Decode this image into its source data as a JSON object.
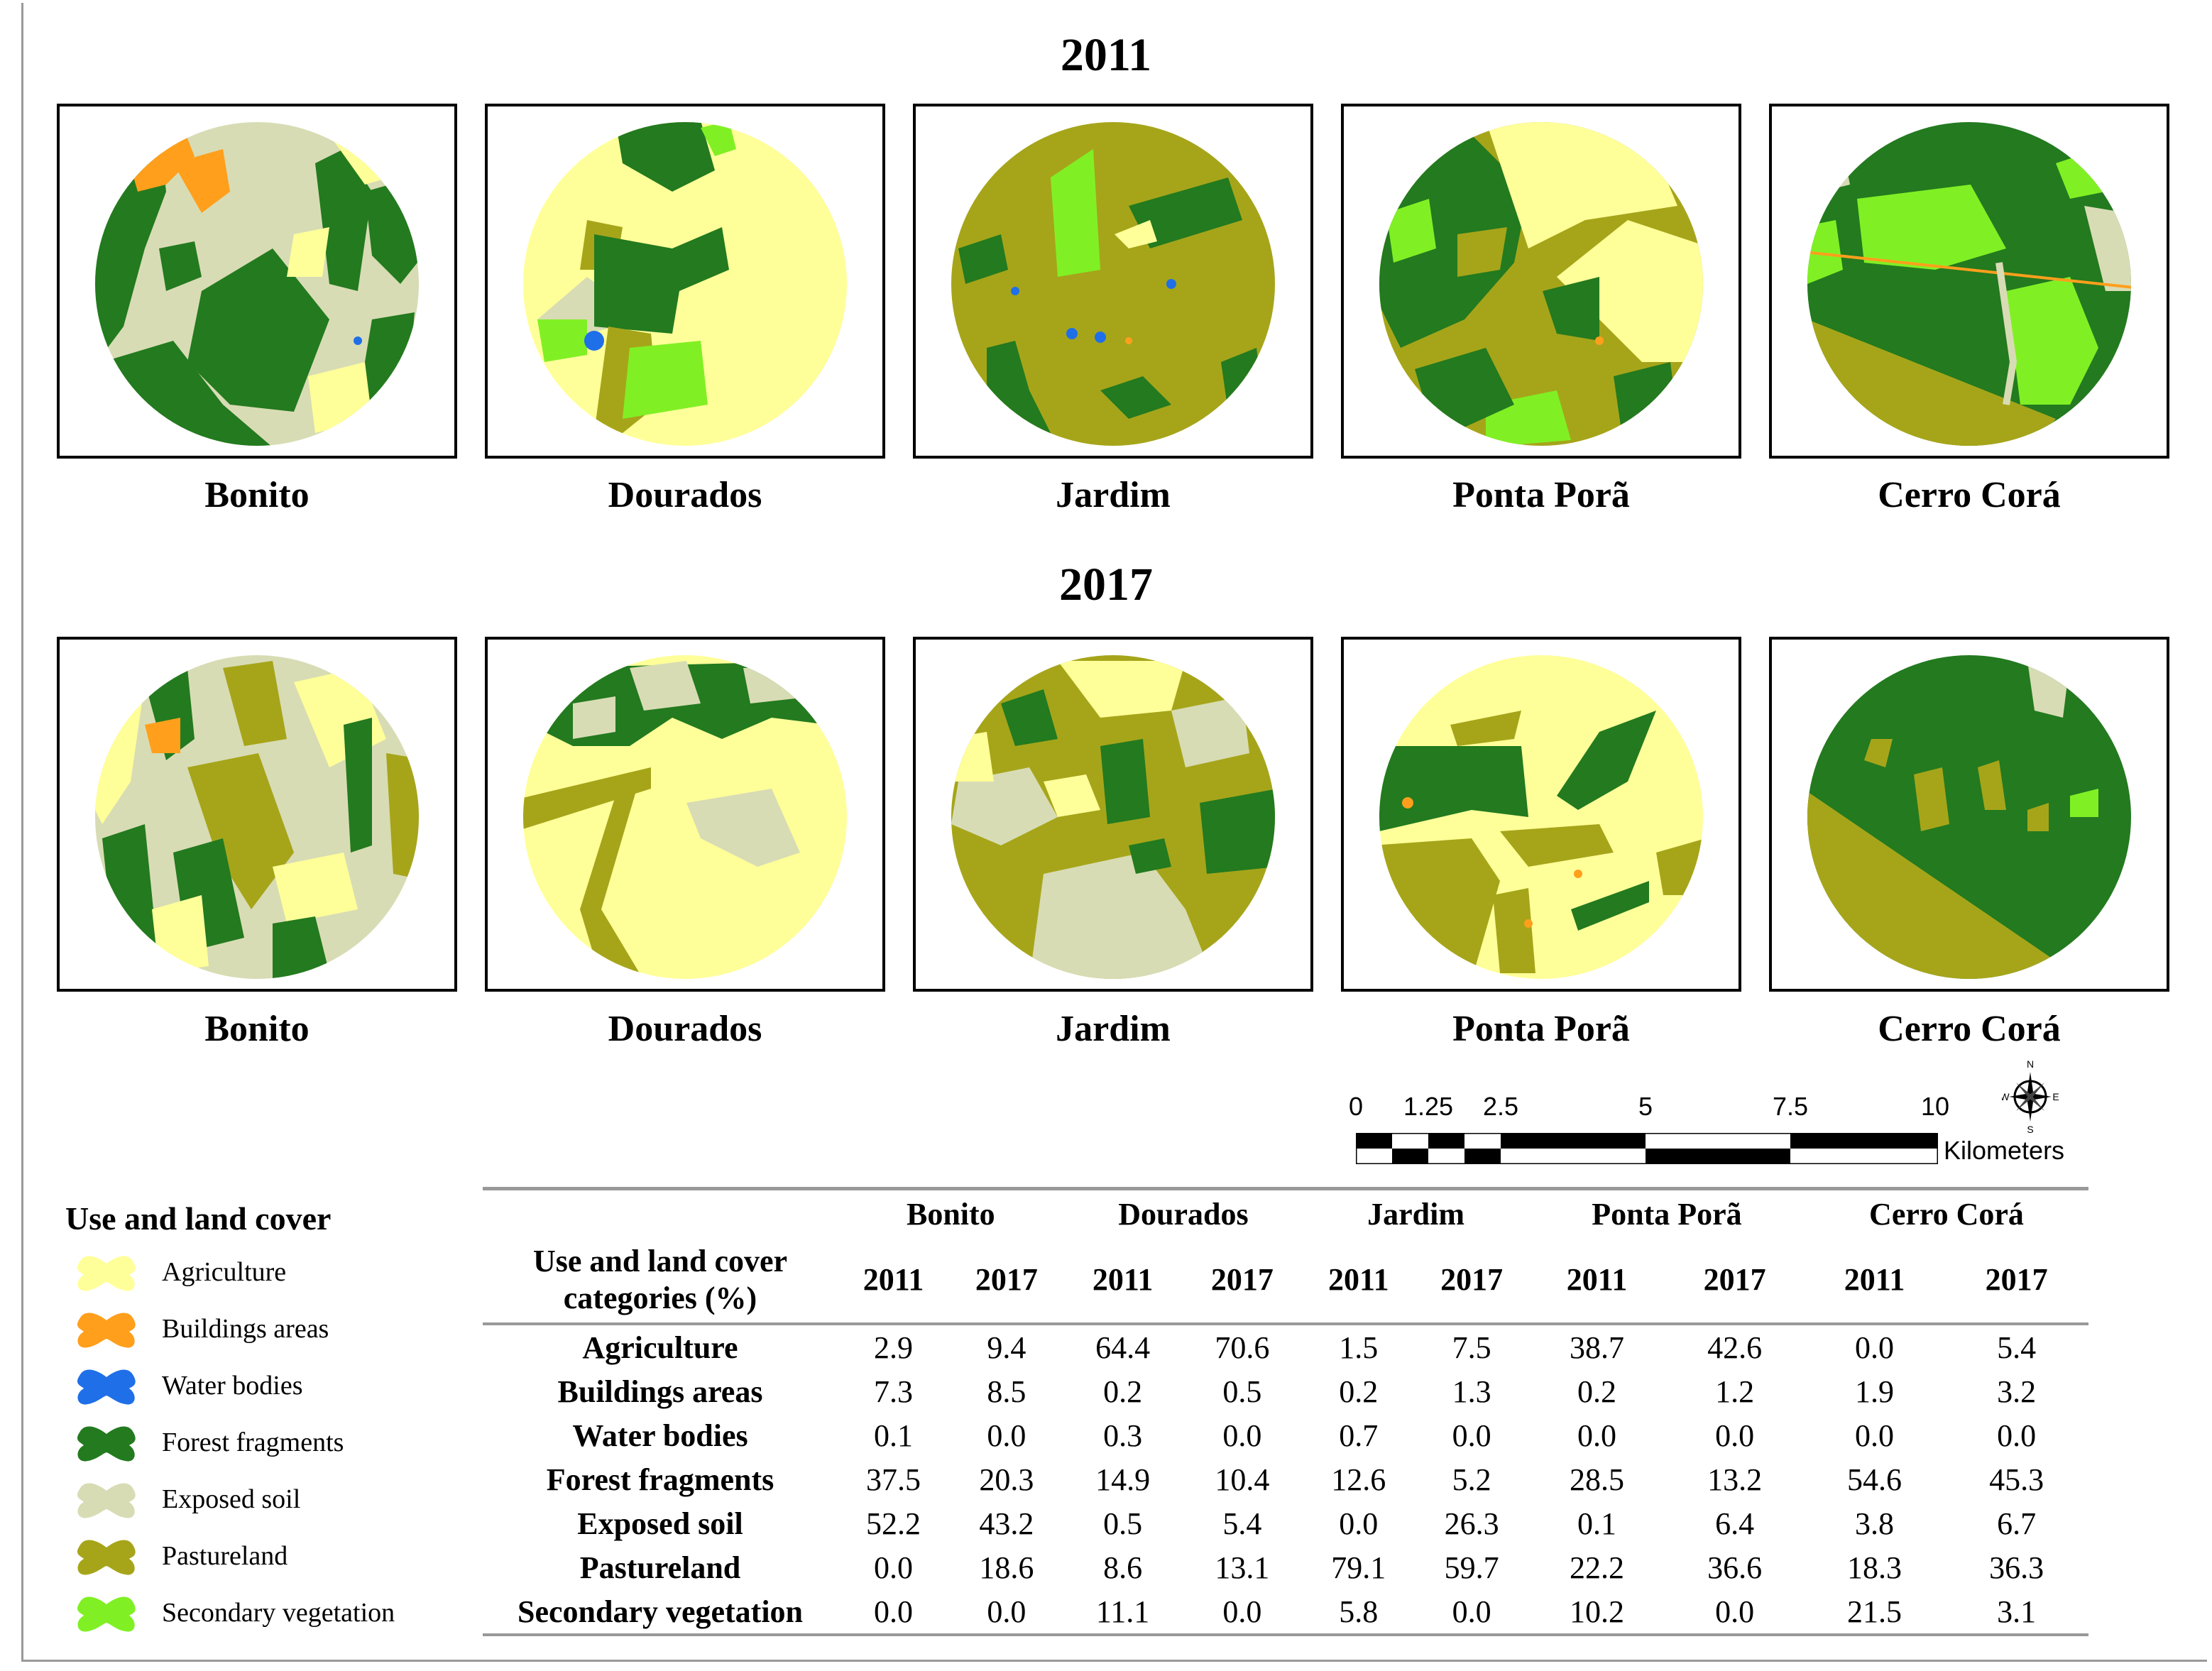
{
  "years": {
    "first": "2011",
    "second": "2017"
  },
  "sites": [
    "Bonito",
    "Dourados",
    "Jardim",
    "Ponta Porã",
    "Cerro Corá"
  ],
  "colors": {
    "agriculture": "#ffff99",
    "buildings": "#ff9f1c",
    "water": "#1f6fe8",
    "forest": "#237a1f",
    "exposed_soil": "#d8dcb4",
    "pastureland": "#a6a51a",
    "secondary_vegetation": "#80f024"
  },
  "legend": {
    "title": "Use and land cover",
    "items": [
      {
        "label": "Agriculture",
        "color": "#ffff99"
      },
      {
        "label": "Buildings areas",
        "color": "#ff9f1c"
      },
      {
        "label": "Water bodies",
        "color": "#1f6fe8"
      },
      {
        "label": "Forest fragments",
        "color": "#237a1f"
      },
      {
        "label": "Exposed soil",
        "color": "#d8dcb4"
      },
      {
        "label": "Pastureland",
        "color": "#a6a51a"
      },
      {
        "label": "Secondary vegetation",
        "color": "#80f024"
      }
    ]
  },
  "scale": {
    "ticks": [
      "0",
      "1.25",
      "2.5",
      "5",
      "7.5",
      "10"
    ],
    "tick_values": [
      0,
      1.25,
      2.5,
      5,
      7.5,
      10
    ],
    "unit": "Kilometers",
    "compass": {
      "n": "N",
      "s": "S",
      "e": "E",
      "w": "W"
    }
  },
  "table": {
    "header_label": "Use and land cover categories (%)",
    "header_label_line1": "Use and land cover",
    "header_label_line2": "categories (%)",
    "sites": [
      "Bonito",
      "Dourados",
      "Jardim",
      "Ponta Porã",
      "Cerro Corá"
    ],
    "years": [
      "2011",
      "2017"
    ],
    "rows": [
      {
        "category": "Agriculture",
        "values": [
          "2.9",
          "9.4",
          "64.4",
          "70.6",
          "1.5",
          "7.5",
          "38.7",
          "42.6",
          "0.0",
          "5.4"
        ]
      },
      {
        "category": "Buildings areas",
        "values": [
          "7.3",
          "8.5",
          "0.2",
          "0.5",
          "0.2",
          "1.3",
          "0.2",
          "1.2",
          "1.9",
          "3.2"
        ]
      },
      {
        "category": "Water bodies",
        "values": [
          "0.1",
          "0.0",
          "0.3",
          "0.0",
          "0.7",
          "0.0",
          "0.0",
          "0.0",
          "0.0",
          "0.0"
        ]
      },
      {
        "category": "Forest fragments",
        "values": [
          "37.5",
          "20.3",
          "14.9",
          "10.4",
          "12.6",
          "5.2",
          "28.5",
          "13.2",
          "54.6",
          "45.3"
        ]
      },
      {
        "category": "Exposed soil",
        "values": [
          "52.2",
          "43.2",
          "0.5",
          "5.4",
          "0.0",
          "26.3",
          "0.1",
          "6.4",
          "3.8",
          "6.7"
        ]
      },
      {
        "category": "Pastureland",
        "values": [
          "0.0",
          "18.6",
          "8.6",
          "13.1",
          "79.1",
          "59.7",
          "22.2",
          "36.6",
          "18.3",
          "36.3"
        ]
      },
      {
        "category": "Secondary vegetation",
        "values": [
          "0.0",
          "0.0",
          "11.1",
          "0.0",
          "5.8",
          "0.0",
          "10.2",
          "0.0",
          "21.5",
          "3.1"
        ]
      }
    ]
  }
}
